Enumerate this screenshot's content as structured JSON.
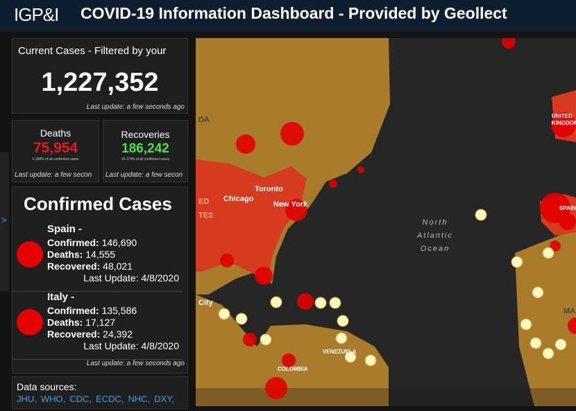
{
  "header": {
    "logo": "IGP&I",
    "title": "COVID-19 Information Dashboard - Provided by Geollect"
  },
  "current": {
    "title": "Current Cases - Filtered by your",
    "value": "1,227,352",
    "update": "Last update: a few seconds ago"
  },
  "deaths": {
    "title": "Deaths",
    "value": "75,954",
    "note": "6.188% of all confirmed cases",
    "update": "Last update: a few secon"
  },
  "recoveries": {
    "title": "Recoveries",
    "value": "186,242",
    "note": "15.174% of all confirmed cases",
    "update": "Last update: a few secon"
  },
  "list": {
    "title": "Confirmed Cases",
    "items": [
      {
        "name": "Spain -",
        "confirmed_label": "Confirmed:",
        "confirmed": "146,690",
        "deaths_label": "Deaths:",
        "deaths": "14,555",
        "recovered_label": "Recovered:",
        "recovered": "48,021",
        "update": "Last Update: 4/8/2020"
      },
      {
        "name": "Italy -",
        "confirmed_label": "Confirmed:",
        "confirmed": "135,586",
        "deaths_label": "Deaths:",
        "deaths": "17,127",
        "recovered_label": "Recovered:",
        "recovered": "24,392",
        "update": "Last Update: 4/8/2020"
      }
    ],
    "update": "Last update: a few seconds ago"
  },
  "sources": {
    "title": "Data sources:",
    "links": [
      "JHU,",
      "WHO,",
      "CDC,",
      "ECDC,",
      "NHC,",
      "DXY,"
    ]
  },
  "map": {
    "labels": [
      "Toronto",
      "Chicago",
      "New York",
      "North",
      "Atlantic",
      "Ocean",
      "City",
      "VENEZUELA",
      "COLOMBIA",
      "UNITED",
      "KINGDOM",
      "SPAIN",
      "DA",
      "ED",
      "TES",
      "MA"
    ]
  }
}
